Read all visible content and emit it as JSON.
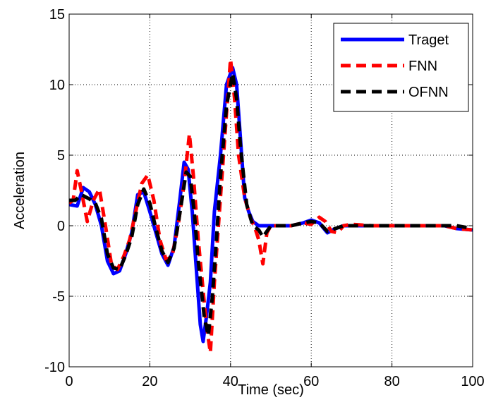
{
  "chart_data": {
    "type": "line",
    "title": "",
    "xlabel": "Time (sec)",
    "ylabel": "Acceleration",
    "xlim": [
      0,
      100
    ],
    "ylim": [
      -10,
      15
    ],
    "x_ticks": [
      0,
      20,
      40,
      60,
      80,
      100
    ],
    "x_tick_labels": [
      "0",
      "20",
      "40",
      "60",
      "80",
      "100"
    ],
    "y_ticks": [
      -10,
      -5,
      0,
      5,
      10,
      15
    ],
    "y_tick_labels": [
      "-10",
      "-5",
      "0",
      "5",
      "10",
      "15"
    ],
    "grid": true,
    "legend": {
      "position": "top-right"
    },
    "series": [
      {
        "name": "Traget",
        "color": "#0000ff",
        "style": "solid",
        "points": [
          [
            0,
            1.5
          ],
          [
            2,
            1.4
          ],
          [
            3.5,
            2.7
          ],
          [
            5,
            2.4
          ],
          [
            6.5,
            1.5
          ],
          [
            8,
            0
          ],
          [
            9.5,
            -2.5
          ],
          [
            11,
            -3.4
          ],
          [
            12.5,
            -3.2
          ],
          [
            14,
            -2
          ],
          [
            15.5,
            -0.5
          ],
          [
            17,
            2.2
          ],
          [
            18.5,
            2.4
          ],
          [
            20,
            1
          ],
          [
            21.5,
            -0.5
          ],
          [
            23,
            -2
          ],
          [
            24.5,
            -2.8
          ],
          [
            26,
            -1.5
          ],
          [
            27.5,
            2
          ],
          [
            28.5,
            4.5
          ],
          [
            29.5,
            4
          ],
          [
            30.5,
            1
          ],
          [
            31.5,
            -3
          ],
          [
            32.5,
            -7
          ],
          [
            33.2,
            -8.2
          ],
          [
            34,
            -6.5
          ],
          [
            35,
            -4
          ],
          [
            36,
            1
          ],
          [
            37.5,
            5
          ],
          [
            39,
            10
          ],
          [
            40.5,
            11.2
          ],
          [
            41.5,
            10
          ],
          [
            42.5,
            6
          ],
          [
            43.5,
            2
          ],
          [
            44.5,
            1
          ],
          [
            45.5,
            0.3
          ],
          [
            47,
            0
          ],
          [
            50,
            0
          ],
          [
            55,
            0
          ],
          [
            58,
            0.2
          ],
          [
            60,
            0.4
          ],
          [
            62,
            0.2
          ],
          [
            64,
            -0.5
          ],
          [
            66,
            -0.2
          ],
          [
            68,
            0
          ],
          [
            75,
            0
          ],
          [
            85,
            0
          ],
          [
            93,
            0
          ],
          [
            96,
            -0.2
          ],
          [
            100,
            -0.3
          ]
        ]
      },
      {
        "name": "FNN",
        "color": "#ff0000",
        "style": "dashed",
        "points": [
          [
            0,
            1.6
          ],
          [
            1,
            1.8
          ],
          [
            2,
            3.9
          ],
          [
            3,
            2.5
          ],
          [
            4.5,
            0.3
          ],
          [
            6,
            1.8
          ],
          [
            7.5,
            2.6
          ],
          [
            9,
            0
          ],
          [
            10.5,
            -2.8
          ],
          [
            12,
            -3.1
          ],
          [
            13.5,
            -2.2
          ],
          [
            15,
            -1
          ],
          [
            16.5,
            1
          ],
          [
            18,
            3
          ],
          [
            19.5,
            3.6
          ],
          [
            21,
            1.8
          ],
          [
            22.5,
            -1
          ],
          [
            24,
            -2.4
          ],
          [
            25.5,
            -2.2
          ],
          [
            27,
            0
          ],
          [
            28.5,
            3
          ],
          [
            29.8,
            6.5
          ],
          [
            30.8,
            3.5
          ],
          [
            32,
            -1
          ],
          [
            33,
            -4
          ],
          [
            34,
            -7
          ],
          [
            35,
            -9
          ],
          [
            36,
            -4
          ],
          [
            37.5,
            2
          ],
          [
            39,
            8
          ],
          [
            40,
            11.8
          ],
          [
            41,
            9
          ],
          [
            42,
            5
          ],
          [
            43.5,
            2
          ],
          [
            45,
            0.5
          ],
          [
            46,
            -0.1
          ],
          [
            47,
            -1
          ],
          [
            48,
            -2.7
          ],
          [
            49,
            -0.5
          ],
          [
            50,
            0
          ],
          [
            55,
            0
          ],
          [
            58,
            0.2
          ],
          [
            60,
            0.1
          ],
          [
            62,
            0.6
          ],
          [
            63.5,
            0.3
          ],
          [
            65,
            -0.4
          ],
          [
            66.5,
            -0.5
          ],
          [
            68,
            0
          ],
          [
            70,
            0.1
          ],
          [
            75,
            0
          ],
          [
            85,
            0
          ],
          [
            93,
            0
          ],
          [
            96,
            -0.2
          ],
          [
            100,
            -0.3
          ]
        ]
      },
      {
        "name": "OFNN",
        "color": "#000000",
        "style": "dashed",
        "points": [
          [
            0,
            1.8
          ],
          [
            1.5,
            1.8
          ],
          [
            3,
            2.2
          ],
          [
            5,
            1.9
          ],
          [
            6.5,
            1.6
          ],
          [
            8,
            0.5
          ],
          [
            9.5,
            -2
          ],
          [
            11,
            -3
          ],
          [
            12.5,
            -3.1
          ],
          [
            14,
            -2.1
          ],
          [
            15.5,
            -0.8
          ],
          [
            17,
            1.5
          ],
          [
            18.5,
            2.6
          ],
          [
            20,
            1.6
          ],
          [
            21.5,
            -0.2
          ],
          [
            23,
            -1.8
          ],
          [
            24.5,
            -2.6
          ],
          [
            26,
            -1.6
          ],
          [
            27.5,
            1
          ],
          [
            29,
            3.8
          ],
          [
            30,
            3.5
          ],
          [
            31,
            1
          ],
          [
            32,
            -2.5
          ],
          [
            33.5,
            -6.5
          ],
          [
            34.5,
            -7.8
          ],
          [
            35.5,
            -5
          ],
          [
            36.5,
            -1
          ],
          [
            37.5,
            3.5
          ],
          [
            39,
            8.5
          ],
          [
            40.5,
            10.8
          ],
          [
            41.5,
            9
          ],
          [
            42.5,
            5.5
          ],
          [
            44,
            1.5
          ],
          [
            45.5,
            0
          ],
          [
            47,
            -0.3
          ],
          [
            48,
            -0.8
          ],
          [
            49,
            -0.4
          ],
          [
            50,
            0
          ],
          [
            55,
            0
          ],
          [
            58,
            0.2
          ],
          [
            60,
            0.3
          ],
          [
            62,
            0.2
          ],
          [
            64,
            -0.4
          ],
          [
            66,
            -0.2
          ],
          [
            68,
            0
          ],
          [
            75,
            0
          ],
          [
            85,
            0
          ],
          [
            93,
            0
          ],
          [
            96,
            0
          ],
          [
            100,
            -0.2
          ]
        ]
      }
    ]
  }
}
